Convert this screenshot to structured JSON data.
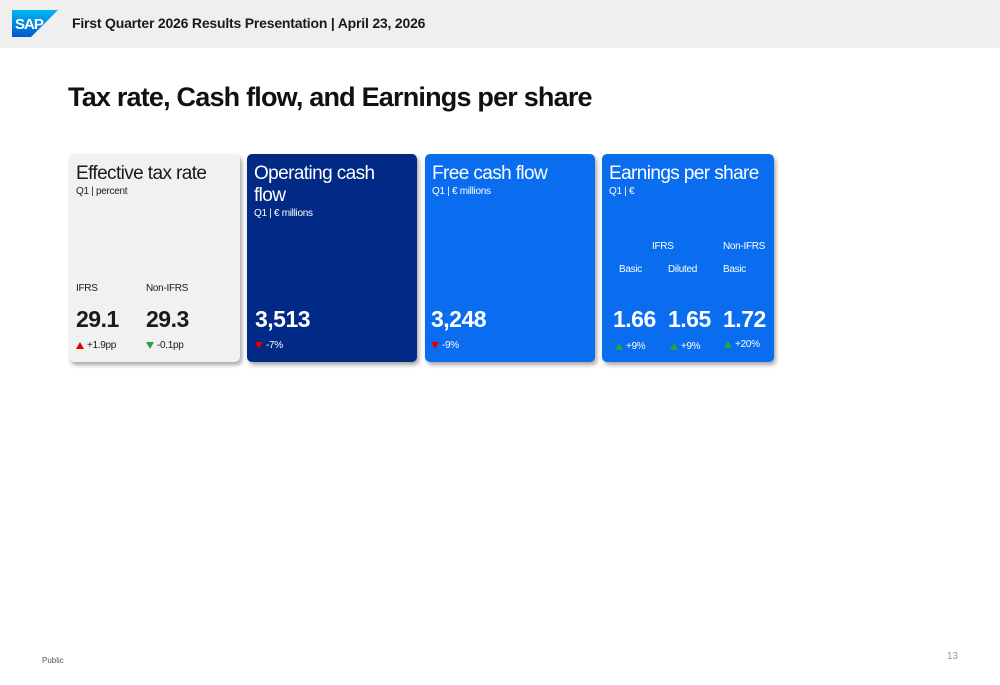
{
  "header": {
    "logo_text": "SAP",
    "presentation_title": "First Quarter 2026 Results Presentation | April 23, 2026"
  },
  "page": {
    "title": "Tax rate, Cash flow, and Earnings per share",
    "footer_label": "Public",
    "page_number": "13"
  },
  "cards": {
    "tax": {
      "title": "Effective tax rate",
      "subtitle": "Q1 | percent",
      "ifrs_label": "IFRS",
      "nonifrs_label": "Non-IFRS",
      "ifrs_value": "29.1",
      "nonifrs_value": "29.3",
      "ifrs_change": "+1.9pp",
      "nonifrs_change": "-0.1pp"
    },
    "ocf": {
      "title": "Operating cash flow",
      "subtitle": "Q1 | € millions",
      "value": "3,513",
      "change": "-7%"
    },
    "fcf": {
      "title": "Free cash flow",
      "subtitle": "Q1 | € millions",
      "value": "3,248",
      "change": "-9%"
    },
    "eps": {
      "title": "Earnings per share",
      "subtitle": "Q1 | €",
      "ifrs_label": "IFRS",
      "nonifrs_label": "Non-IFRS",
      "basic_label": "Basic",
      "diluted_label": "Diluted",
      "nonifrs_basic_label": "Basic",
      "ifrs_basic_value": "1.66",
      "ifrs_diluted_value": "1.65",
      "nonifrs_basic_value": "1.72",
      "ifrs_basic_change": "+9%",
      "ifrs_diluted_change": "+9%",
      "nonifrs_basic_change": "+20%"
    }
  },
  "colors": {
    "header_bg": "#efefef",
    "tax_card_bg": "#f1f1f1",
    "ocf_card_bg": "#002a86",
    "blue_card_bg": "#0a6df0",
    "increase_red": "#e00000",
    "positive_green": "#2ea043"
  }
}
